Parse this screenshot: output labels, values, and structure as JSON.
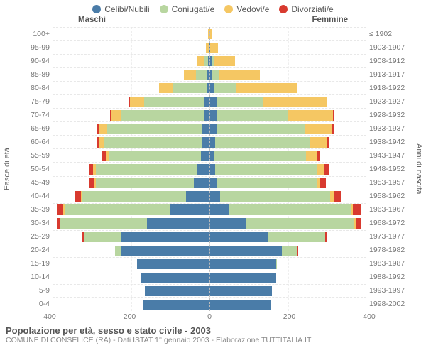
{
  "colors": {
    "celibi": "#4a7ca8",
    "coniugati": "#b8d6a0",
    "vedovi": "#f5c763",
    "divorziati": "#d83a2f",
    "grid": "#e8e8e8",
    "centerline": "#bbbbbb",
    "bg": "#ffffff"
  },
  "legend": [
    {
      "label": "Celibi/Nubili",
      "colorKey": "celibi"
    },
    {
      "label": "Coniugati/e",
      "colorKey": "coniugati"
    },
    {
      "label": "Vedovi/e",
      "colorKey": "vedovi"
    },
    {
      "label": "Divorziati/e",
      "colorKey": "divorziati"
    }
  ],
  "columnHeaders": {
    "left": "Maschi",
    "right": "Femmine"
  },
  "axisTitles": {
    "left": "Fasce di età",
    "right": "Anni di nascita"
  },
  "xAxis": {
    "max": 400,
    "ticks": [
      400,
      200,
      0,
      200,
      400
    ]
  },
  "title": "Popolazione per età, sesso e stato civile - 2003",
  "subtitle": "COMUNE DI CONSELICE (RA) - Dati ISTAT 1° gennaio 2003 - Elaborazione TUTTITALIA.IT",
  "rows": [
    {
      "age": "100+",
      "birth": "≤ 1902",
      "m": {
        "cel": 0,
        "con": 0,
        "ved": 3,
        "div": 0
      },
      "f": {
        "cel": 0,
        "con": 0,
        "ved": 5,
        "div": 0
      }
    },
    {
      "age": "95-99",
      "birth": "1903-1907",
      "m": {
        "cel": 0,
        "con": 2,
        "ved": 8,
        "div": 0
      },
      "f": {
        "cel": 2,
        "con": 0,
        "ved": 20,
        "div": 0
      }
    },
    {
      "age": "90-94",
      "birth": "1908-1912",
      "m": {
        "cel": 3,
        "con": 10,
        "ved": 18,
        "div": 0
      },
      "f": {
        "cel": 5,
        "con": 5,
        "ved": 55,
        "div": 0
      }
    },
    {
      "age": "85-89",
      "birth": "1913-1917",
      "m": {
        "cel": 5,
        "con": 30,
        "ved": 30,
        "div": 0
      },
      "f": {
        "cel": 8,
        "con": 15,
        "ved": 105,
        "div": 0
      }
    },
    {
      "age": "80-84",
      "birth": "1918-1922",
      "m": {
        "cel": 8,
        "con": 85,
        "ved": 35,
        "div": 0
      },
      "f": {
        "cel": 12,
        "con": 55,
        "ved": 155,
        "div": 2
      }
    },
    {
      "age": "75-79",
      "birth": "1923-1927",
      "m": {
        "cel": 12,
        "con": 155,
        "ved": 35,
        "div": 2
      },
      "f": {
        "cel": 18,
        "con": 120,
        "ved": 160,
        "div": 3
      }
    },
    {
      "age": "70-74",
      "birth": "1928-1932",
      "m": {
        "cel": 15,
        "con": 210,
        "ved": 25,
        "div": 3
      },
      "f": {
        "cel": 20,
        "con": 180,
        "ved": 115,
        "div": 4
      }
    },
    {
      "age": "65-69",
      "birth": "1933-1937",
      "m": {
        "cel": 18,
        "con": 245,
        "ved": 20,
        "div": 5
      },
      "f": {
        "cel": 18,
        "con": 225,
        "ved": 70,
        "div": 5
      }
    },
    {
      "age": "60-64",
      "birth": "1938-1942",
      "m": {
        "cel": 20,
        "con": 250,
        "ved": 12,
        "div": 6
      },
      "f": {
        "cel": 15,
        "con": 240,
        "ved": 45,
        "div": 6
      }
    },
    {
      "age": "55-59",
      "birth": "1943-1947",
      "m": {
        "cel": 22,
        "con": 235,
        "ved": 8,
        "div": 8
      },
      "f": {
        "cel": 12,
        "con": 235,
        "ved": 28,
        "div": 8
      }
    },
    {
      "age": "50-54",
      "birth": "1948-1952",
      "m": {
        "cel": 30,
        "con": 260,
        "ved": 6,
        "div": 12
      },
      "f": {
        "cel": 15,
        "con": 260,
        "ved": 18,
        "div": 12
      }
    },
    {
      "age": "45-49",
      "birth": "1953-1957",
      "m": {
        "cel": 40,
        "con": 250,
        "ved": 4,
        "div": 14
      },
      "f": {
        "cel": 18,
        "con": 255,
        "ved": 10,
        "div": 14
      }
    },
    {
      "age": "40-44",
      "birth": "1958-1962",
      "m": {
        "cel": 60,
        "con": 265,
        "ved": 3,
        "div": 16
      },
      "f": {
        "cel": 28,
        "con": 280,
        "ved": 8,
        "div": 18
      }
    },
    {
      "age": "35-39",
      "birth": "1963-1967",
      "m": {
        "cel": 100,
        "con": 270,
        "ved": 2,
        "div": 18
      },
      "f": {
        "cel": 50,
        "con": 310,
        "ved": 5,
        "div": 20
      }
    },
    {
      "age": "30-34",
      "birth": "1968-1972",
      "m": {
        "cel": 160,
        "con": 220,
        "ved": 0,
        "div": 10
      },
      "f": {
        "cel": 95,
        "con": 275,
        "ved": 3,
        "div": 14
      }
    },
    {
      "age": "25-29",
      "birth": "1973-1977",
      "m": {
        "cel": 225,
        "con": 95,
        "ved": 0,
        "div": 4
      },
      "f": {
        "cel": 150,
        "con": 145,
        "ved": 0,
        "div": 6
      }
    },
    {
      "age": "20-24",
      "birth": "1978-1982",
      "m": {
        "cel": 225,
        "con": 15,
        "ved": 0,
        "div": 0
      },
      "f": {
        "cel": 185,
        "con": 40,
        "ved": 0,
        "div": 2
      }
    },
    {
      "age": "15-19",
      "birth": "1983-1987",
      "m": {
        "cel": 185,
        "con": 0,
        "ved": 0,
        "div": 0
      },
      "f": {
        "cel": 170,
        "con": 2,
        "ved": 0,
        "div": 0
      }
    },
    {
      "age": "10-14",
      "birth": "1988-1992",
      "m": {
        "cel": 175,
        "con": 0,
        "ved": 0,
        "div": 0
      },
      "f": {
        "cel": 170,
        "con": 0,
        "ved": 0,
        "div": 0
      }
    },
    {
      "age": "5-9",
      "birth": "1993-1997",
      "m": {
        "cel": 165,
        "con": 0,
        "ved": 0,
        "div": 0
      },
      "f": {
        "cel": 160,
        "con": 0,
        "ved": 0,
        "div": 0
      }
    },
    {
      "age": "0-4",
      "birth": "1998-2002",
      "m": {
        "cel": 170,
        "con": 0,
        "ved": 0,
        "div": 0
      },
      "f": {
        "cel": 155,
        "con": 0,
        "ved": 0,
        "div": 0
      }
    }
  ]
}
